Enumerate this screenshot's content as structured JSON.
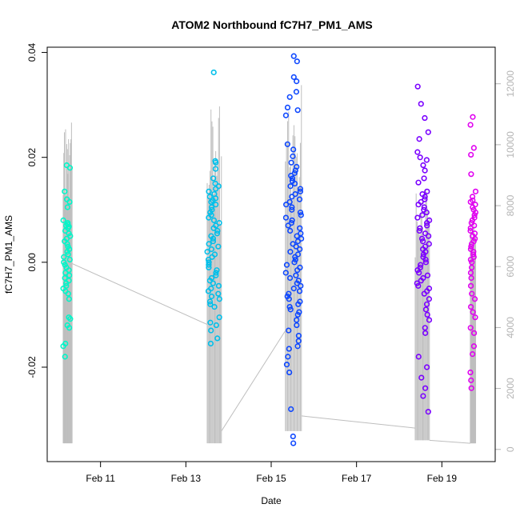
{
  "chart_data": {
    "type": "scatter",
    "title": "ATOM2 Northbound fC7H7_PM1_AMS",
    "xlabel": "Date",
    "ylabel": "fC7H7_PM1_AMS",
    "x_ticks": [
      "Feb 11",
      "Feb 13",
      "Feb 15",
      "Feb 17",
      "Feb 19"
    ],
    "y_ticks": [
      "-0.02",
      "0.00",
      "0.02",
      "0.04"
    ],
    "y2_ticks": [
      "0",
      "2000",
      "4000",
      "6000",
      "8000",
      "10000",
      "12000"
    ],
    "xlim": [
      "2014-02-09 18:00",
      "2014-02-20 06:00"
    ],
    "ylim": [
      -0.038,
      0.041
    ],
    "y2lim": [
      -400,
      13200
    ],
    "grid": false,
    "legend": "none",
    "colors": {
      "group1": "#00f5c8",
      "group2": "#00bfea",
      "group3": "#0d47ff",
      "group4": "#7a00ff",
      "group5": "#e000f0",
      "line": "#bebebe",
      "right_axis": "#b4b4b4"
    },
    "series": [
      {
        "color": "#00f5c8",
        "x_range": [
          "2014-02-10 03:00",
          "2014-02-10 07:00"
        ],
        "points": [
          0.0185,
          0.018,
          0.0135,
          0.012,
          0.0115,
          0.0105,
          0.008,
          0.0075,
          0.0072,
          0.007,
          0.0068,
          0.0065,
          0.006,
          0.0055,
          0.005,
          0.0045,
          0.004,
          0.0035,
          0.003,
          0.0025,
          0.002,
          0.0015,
          0.001,
          0.0005,
          0.0,
          -0.0005,
          -0.001,
          -0.0015,
          -0.002,
          -0.0025,
          -0.003,
          -0.0035,
          -0.004,
          -0.0045,
          -0.005,
          -0.0055,
          -0.006,
          -0.007,
          -0.0105,
          -0.0108,
          -0.012,
          -0.0125,
          -0.0155,
          -0.016,
          -0.018
        ]
      },
      {
        "color": "#00bfea",
        "x_range": [
          "2014-02-13 12:00",
          "2014-02-13 19:00"
        ],
        "points": [
          0.0362,
          0.0193,
          0.019,
          0.0178,
          0.016,
          0.015,
          0.0145,
          0.014,
          0.0135,
          0.013,
          0.0125,
          0.0122,
          0.0118,
          0.0115,
          0.011,
          0.0105,
          0.01,
          0.0095,
          0.009,
          0.0085,
          0.008,
          0.0075,
          0.007,
          0.0065,
          0.006,
          0.0055,
          0.005,
          0.0045,
          0.004,
          0.0035,
          0.003,
          0.0025,
          0.002,
          0.0015,
          0.001,
          0.0005,
          0.0,
          -0.0005,
          -0.001,
          -0.0015,
          -0.002,
          -0.0025,
          -0.003,
          -0.0035,
          -0.004,
          -0.0045,
          -0.005,
          -0.0055,
          -0.006,
          -0.0065,
          -0.007,
          -0.0075,
          -0.008,
          -0.0085,
          -0.0105,
          -0.0115,
          -0.012,
          -0.013,
          -0.0145,
          -0.0155
        ]
      },
      {
        "color": "#0d47ff",
        "x_range": [
          "2014-02-15 08:00",
          "2014-02-15 17:00"
        ],
        "points": [
          0.0393,
          0.0383,
          0.0353,
          0.0345,
          0.0325,
          0.0315,
          0.0295,
          0.029,
          0.028,
          0.0225,
          0.0215,
          0.0202,
          0.019,
          0.0182,
          0.0175,
          0.017,
          0.0165,
          0.016,
          0.0155,
          0.015,
          0.0145,
          0.014,
          0.0135,
          0.013,
          0.0125,
          0.012,
          0.0115,
          0.011,
          0.0105,
          0.01,
          0.0095,
          0.009,
          0.0085,
          0.008,
          0.0075,
          0.007,
          0.0065,
          0.006,
          0.0055,
          0.005,
          0.0045,
          0.004,
          0.0035,
          0.003,
          0.0025,
          0.002,
          0.0015,
          0.001,
          0.0005,
          0.0,
          -0.0005,
          -0.001,
          -0.0015,
          -0.002,
          -0.0025,
          -0.003,
          -0.0035,
          -0.004,
          -0.0045,
          -0.005,
          -0.0055,
          -0.006,
          -0.0065,
          -0.007,
          -0.0075,
          -0.008,
          -0.0085,
          -0.009,
          -0.0095,
          -0.01,
          -0.011,
          -0.012,
          -0.013,
          -0.014,
          -0.015,
          -0.016,
          -0.0165,
          -0.018,
          -0.0195,
          -0.021,
          -0.028,
          -0.0332,
          -0.0345
        ]
      },
      {
        "color": "#7a00ff",
        "x_range": [
          "2014-02-18 10:00",
          "2014-02-18 17:00"
        ],
        "points": [
          0.0335,
          0.0302,
          0.0275,
          0.0248,
          0.0235,
          0.021,
          0.02,
          0.0195,
          0.0185,
          0.0175,
          0.016,
          0.0152,
          0.0135,
          0.013,
          0.0125,
          0.012,
          0.0115,
          0.011,
          0.0105,
          0.01,
          0.0095,
          0.009,
          0.0085,
          0.008,
          0.0075,
          0.007,
          0.0065,
          0.006,
          0.0055,
          0.005,
          0.0045,
          0.004,
          0.0035,
          0.003,
          0.0025,
          0.002,
          0.0015,
          0.001,
          0.0005,
          0.0,
          -0.0005,
          -0.001,
          -0.0015,
          -0.002,
          -0.0025,
          -0.003,
          -0.0035,
          -0.004,
          -0.0045,
          -0.005,
          -0.0055,
          -0.006,
          -0.007,
          -0.008,
          -0.009,
          -0.01,
          -0.011,
          -0.0125,
          -0.0135,
          -0.018,
          -0.02,
          -0.022,
          -0.024,
          -0.0255,
          -0.0285
        ]
      },
      {
        "color": "#e000f0",
        "x_range": [
          "2014-02-19 16:00",
          "2014-02-19 19:00"
        ],
        "points": [
          0.0277,
          0.0262,
          0.0218,
          0.0205,
          0.0168,
          0.0135,
          0.0125,
          0.0118,
          0.0115,
          0.011,
          0.0105,
          0.01,
          0.0095,
          0.009,
          0.0085,
          0.008,
          0.0075,
          0.007,
          0.0065,
          0.006,
          0.0055,
          0.005,
          0.0045,
          0.004,
          0.0035,
          0.003,
          0.0025,
          0.002,
          0.0015,
          0.001,
          0.0005,
          0.0,
          -0.001,
          -0.002,
          -0.003,
          -0.0045,
          -0.006,
          -0.007,
          -0.0085,
          -0.0095,
          -0.0105,
          -0.0125,
          -0.0135,
          -0.016,
          -0.0175,
          -0.021,
          -0.0225,
          -0.024
        ]
      }
    ],
    "line_series": {
      "color": "#bebebe",
      "axis": "right",
      "dense_blocks": [
        {
          "x_range": [
            "2014-02-10 03:00",
            "2014-02-10 08:00"
          ],
          "y_low": 200,
          "y_high": [
            9800,
            10400,
            11800,
            10600,
            12000
          ]
        },
        {
          "x_range": [
            "2014-02-13 12:00",
            "2014-02-13 20:00"
          ],
          "y_low": 200,
          "y_high": [
            9200,
            10000,
            10600,
            11000,
            11400,
            11800,
            12200
          ]
        },
        {
          "x_range": [
            "2014-02-15 08:00",
            "2014-02-15 17:00"
          ],
          "y_low": 600,
          "y_high": [
            9800,
            10800,
            11600,
            12200,
            11400,
            10400
          ]
        },
        {
          "x_range": [
            "2014-02-18 09:00",
            "2014-02-18 17:00"
          ],
          "y_low": 300,
          "y_high": [
            7600,
            8600,
            9000,
            8200,
            8800
          ]
        },
        {
          "x_range": [
            "2014-02-19 16:00",
            "2014-02-19 19:00"
          ],
          "y_low": 200,
          "y_high": [
            7600,
            8200,
            7400
          ]
        }
      ],
      "connectors": [
        {
          "x": [
            "2014-02-10 08:00",
            "2014-02-13 12:00"
          ],
          "y": [
            6100,
            4100
          ]
        },
        {
          "x": [
            "2014-02-13 20:00",
            "2014-02-15 08:00"
          ],
          "y": [
            600,
            3900
          ]
        },
        {
          "x": [
            "2014-02-15 17:00",
            "2014-02-18 09:00"
          ],
          "y": [
            1100,
            700
          ]
        },
        {
          "x": [
            "2014-02-18 17:00",
            "2014-02-19 16:00"
          ],
          "y": [
            300,
            200
          ]
        }
      ]
    }
  }
}
